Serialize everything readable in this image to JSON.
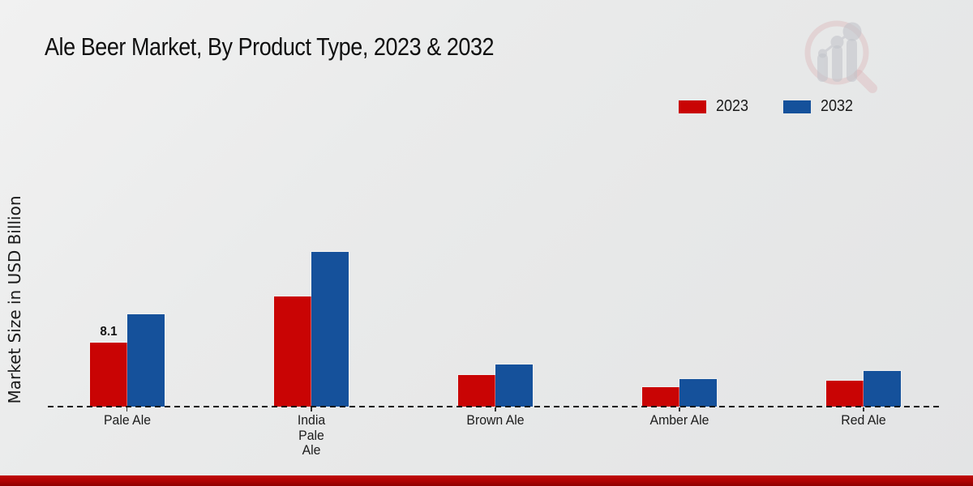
{
  "title": "Ale Beer Market, By Product Type, 2023 & 2032",
  "ylabel": "Market Size in USD Billion",
  "legend": {
    "items": [
      {
        "label": "2023",
        "color": "#c90404"
      },
      {
        "label": "2032",
        "color": "#15519b"
      }
    ]
  },
  "colors": {
    "series_2023": "#c90404",
    "series_2032": "#15519b",
    "footer_band": "#ad0404",
    "text": "#1a1a1a"
  },
  "logo": {
    "name": "market-research-future-watermark"
  },
  "chart_data": {
    "type": "bar",
    "title": "Ale Beer Market, By Product Type, 2023 & 2032",
    "xlabel": "",
    "ylabel": "Market Size in USD Billion",
    "categories": [
      "Pale Ale",
      "India Pale Ale",
      "Brown Ale",
      "Amber Ale",
      "Red Ale"
    ],
    "category_label_lines": [
      [
        "Pale Ale"
      ],
      [
        "India",
        "Pale",
        "Ale"
      ],
      [
        "Brown Ale"
      ],
      [
        "Amber Ale"
      ],
      [
        "Red Ale"
      ]
    ],
    "series": [
      {
        "name": "2023",
        "color": "#c90404",
        "values": [
          8.1,
          13.9,
          4.0,
          2.5,
          3.3
        ]
      },
      {
        "name": "2032",
        "color": "#15519b",
        "values": [
          11.7,
          19.6,
          5.3,
          3.5,
          4.5
        ]
      }
    ],
    "bar_labels": [
      {
        "series_index": 0,
        "category_index": 0,
        "text": "8.1"
      }
    ],
    "ylim": [
      0,
      20.5
    ],
    "grid": false,
    "legend_position": "top-right",
    "baseline_style": "dashed"
  }
}
